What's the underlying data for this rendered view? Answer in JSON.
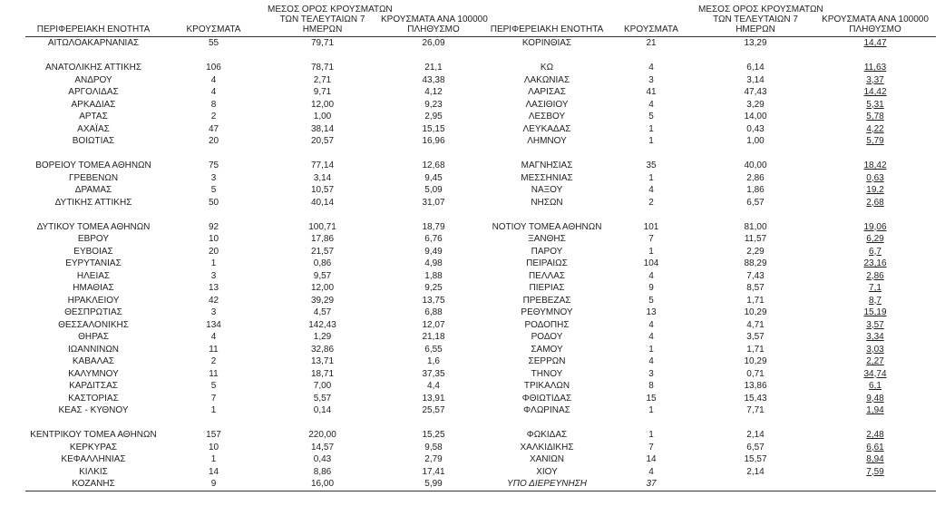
{
  "styles": {
    "text_color": "#1f1f1f",
    "rule_color": "#333333",
    "right_per100k_underlined": true
  },
  "headers": {
    "region": "ΠΕΡΙΦΕΡΕΙΑΚΗ ΕΝΟΤΗΤΑ",
    "cases": "ΚΡΟΥΣΜΑΤΑ",
    "avg7_lines": [
      "ΜΕΣΟΣ ΟΡΟΣ ΚΡΟΥΣΜΑΤΩΝ",
      "ΤΩΝ ΤΕΛΕΥΤΑΙΩΝ 7",
      "ΗΜΕΡΩΝ"
    ],
    "per100k_lines": [
      "ΚΡΟΥΣΜΑΤΑ ΑΝΑ 100000",
      "ΠΛΗΘΥΣΜΟ"
    ]
  },
  "left_rows": [
    [
      "ΑΙΤΩΛΟΑΚΑΡΝΑΝΙΑΣ",
      "55",
      "79,71",
      "26,09"
    ],
    null,
    [
      "ΑΝΑΤΟΛΙΚΗΣ ΑΤΤΙΚΗΣ",
      "106",
      "78,71",
      "21,1"
    ],
    [
      "ΑΝΔΡΟΥ",
      "4",
      "2,71",
      "43,38"
    ],
    [
      "ΑΡΓΟΛΙΔΑΣ",
      "4",
      "9,71",
      "4,12"
    ],
    [
      "ΑΡΚΑΔΙΑΣ",
      "8",
      "12,00",
      "9,23"
    ],
    [
      "ΑΡΤΑΣ",
      "2",
      "1,00",
      "2,95"
    ],
    [
      "ΑΧΑΪΑΣ",
      "47",
      "38,14",
      "15,15"
    ],
    [
      "ΒΟΙΩΤΙΑΣ",
      "20",
      "20,57",
      "16,96"
    ],
    null,
    [
      "ΒΟΡΕΙΟΥ ΤΟΜΕΑ ΑΘΗΝΩΝ",
      "75",
      "77,14",
      "12,68"
    ],
    [
      "ΓΡΕΒΕΝΩΝ",
      "3",
      "3,14",
      "9,45"
    ],
    [
      "ΔΡΑΜΑΣ",
      "5",
      "10,57",
      "5,09"
    ],
    [
      "ΔΥΤΙΚΗΣ ΑΤΤΙΚΗΣ",
      "50",
      "40,14",
      "31,07"
    ],
    null,
    [
      "ΔΥΤΙΚΟΥ ΤΟΜΕΑ ΑΘΗΝΩΝ",
      "92",
      "100,71",
      "18,79"
    ],
    [
      "ΕΒΡΟΥ",
      "10",
      "17,86",
      "6,76"
    ],
    [
      "ΕΥΒΟΙΑΣ",
      "20",
      "21,57",
      "9,49"
    ],
    [
      "ΕΥΡΥΤΑΝΙΑΣ",
      "1",
      "0,86",
      "4,98"
    ],
    [
      "ΗΛΕΙΑΣ",
      "3",
      "9,57",
      "1,88"
    ],
    [
      "ΗΜΑΘΙΑΣ",
      "13",
      "12,00",
      "9,25"
    ],
    [
      "ΗΡΑΚΛΕΙΟΥ",
      "42",
      "39,29",
      "13,75"
    ],
    [
      "ΘΕΣΠΡΩΤΙΑΣ",
      "3",
      "4,57",
      "6,88"
    ],
    [
      "ΘΕΣΣΑΛΟΝΙΚΗΣ",
      "134",
      "142,43",
      "12,07"
    ],
    [
      "ΘΗΡΑΣ",
      "4",
      "1,29",
      "21,18"
    ],
    [
      "ΙΩΑΝΝΙΝΩΝ",
      "11",
      "32,86",
      "6,55"
    ],
    [
      "ΚΑΒΑΛΑΣ",
      "2",
      "13,71",
      "1,6"
    ],
    [
      "ΚΑΛΥΜΝΟΥ",
      "11",
      "18,71",
      "37,35"
    ],
    [
      "ΚΑΡΔΙΤΣΑΣ",
      "5",
      "7,00",
      "4,4"
    ],
    [
      "ΚΑΣΤΟΡΙΑΣ",
      "7",
      "5,57",
      "13,91"
    ],
    [
      "ΚΕΑΣ - ΚΥΘΝΟΥ",
      "1",
      "0,14",
      "25,57"
    ],
    null,
    [
      "ΚΕΝΤΡΙΚΟΥ ΤΟΜΕΑ ΑΘΗΝΩΝ",
      "157",
      "220,00",
      "15,25"
    ],
    [
      "ΚΕΡΚΥΡΑΣ",
      "10",
      "14,57",
      "9,58"
    ],
    [
      "ΚΕΦΑΛΛΗΝΙΑΣ",
      "1",
      "0,43",
      "2,79"
    ],
    [
      "ΚΙΛΚΙΣ",
      "14",
      "8,86",
      "17,41"
    ],
    [
      "ΚΟΖΑΝΗΣ",
      "9",
      "16,00",
      "5,99"
    ]
  ],
  "right_rows": [
    [
      "ΚΟΡΙΝΘΙΑΣ",
      "21",
      "13,29",
      "14,47"
    ],
    null,
    [
      "ΚΩ",
      "4",
      "6,14",
      "11,63"
    ],
    [
      "ΛΑΚΩΝΙΑΣ",
      "3",
      "3,14",
      "3,37"
    ],
    [
      "ΛΑΡΙΣΑΣ",
      "41",
      "47,43",
      "14,42"
    ],
    [
      "ΛΑΣΙΘΙΟΥ",
      "4",
      "3,29",
      "5,31"
    ],
    [
      "ΛΕΣΒΟΥ",
      "5",
      "14,00",
      "5,78"
    ],
    [
      "ΛΕΥΚΑΔΑΣ",
      "1",
      "0,43",
      "4,22"
    ],
    [
      "ΛΗΜΝΟΥ",
      "1",
      "1,00",
      "5,79"
    ],
    null,
    [
      "ΜΑΓΝΗΣΙΑΣ",
      "35",
      "40,00",
      "18,42"
    ],
    [
      "ΜΕΣΣΗΝΙΑΣ",
      "1",
      "2,86",
      "0,63"
    ],
    [
      "ΝΑΞΟΥ",
      "4",
      "1,86",
      "19,2"
    ],
    [
      "ΝΗΣΩΝ",
      "2",
      "6,57",
      "2,68"
    ],
    null,
    [
      "ΝΟΤΙΟΥ ΤΟΜΕΑ ΑΘΗΝΩΝ",
      "101",
      "81,00",
      "19,06"
    ],
    [
      "ΞΑΝΘΗΣ",
      "7",
      "11,57",
      "6,29"
    ],
    [
      "ΠΑΡΟΥ",
      "1",
      "2,29",
      "6,7"
    ],
    [
      "ΠΕΙΡΑΙΩΣ",
      "104",
      "88,29",
      "23,16"
    ],
    [
      "ΠΕΛΛΑΣ",
      "4",
      "7,43",
      "2,86"
    ],
    [
      "ΠΙΕΡΙΑΣ",
      "9",
      "8,57",
      "7,1"
    ],
    [
      "ΠΡΕΒΕΖΑΣ",
      "5",
      "1,71",
      "8,7"
    ],
    [
      "ΡΕΘΥΜΝΟΥ",
      "13",
      "10,29",
      "15,19"
    ],
    [
      "ΡΟΔΟΠΗΣ",
      "4",
      "4,71",
      "3,57"
    ],
    [
      "ΡΟΔΟΥ",
      "4",
      "3,57",
      "3,34"
    ],
    [
      "ΣΑΜΟΥ",
      "1",
      "1,71",
      "3,03"
    ],
    [
      "ΣΕΡΡΩΝ",
      "4",
      "10,29",
      "2,27"
    ],
    [
      "ΤΗΝΟΥ",
      "3",
      "0,71",
      "34,74"
    ],
    [
      "ΤΡΙΚΑΛΩΝ",
      "8",
      "13,86",
      "6,1"
    ],
    [
      "ΦΘΙΩΤΙΔΑΣ",
      "15",
      "15,43",
      "9,48"
    ],
    [
      "ΦΛΩΡΙΝΑΣ",
      "1",
      "7,71",
      "1,94"
    ],
    null,
    [
      "ΦΩΚΙΔΑΣ",
      "1",
      "2,14",
      "2,48"
    ],
    [
      "ΧΑΛΚΙΔΙΚΗΣ",
      "7",
      "6,57",
      "6,61"
    ],
    [
      "ΧΑΝΙΩΝ",
      "14",
      "15,57",
      "8,94"
    ],
    [
      "ΧΙΟΥ",
      "4",
      "2,14",
      "7,59"
    ],
    [
      "ΥΠΟ ΔΙΕΡΕΥΝΗΣΗ",
      "37",
      "",
      "",
      "italic"
    ]
  ]
}
